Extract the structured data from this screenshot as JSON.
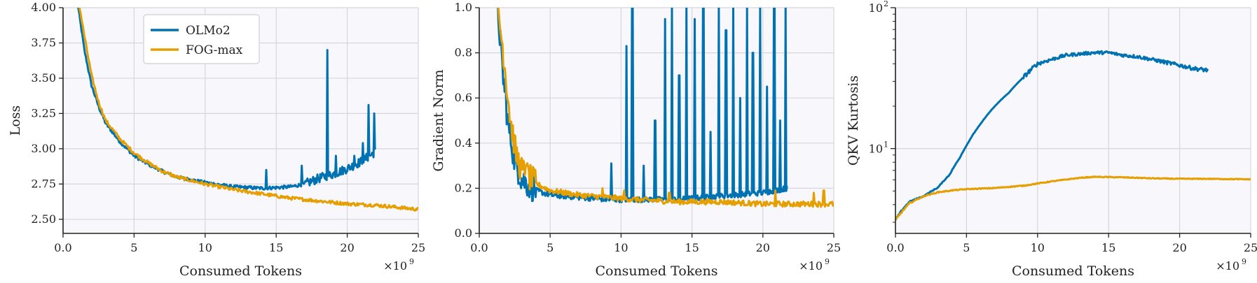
{
  "colors": {
    "olmo2": "#0072b2",
    "fog": "#e69f00",
    "grid": "#d6d6de",
    "plot_bg": "#f7f7fc"
  },
  "chart_data": [
    {
      "type": "line",
      "xlabel": "Consumed Tokens",
      "ylabel": "Loss",
      "x_multiplier": "×10",
      "x_multiplier_exp": "9",
      "xlim": [
        0,
        25
      ],
      "ylim": [
        2.4,
        4.0
      ],
      "x_ticks": [
        0,
        5,
        10,
        15,
        20,
        25
      ],
      "x_tick_labels": [
        "0.0",
        "5",
        "10",
        "15",
        "20",
        "25"
      ],
      "y_ticks": [
        2.5,
        2.75,
        3.0,
        3.25,
        3.5,
        3.75,
        4.0
      ],
      "y_tick_labels": [
        "2.50",
        "2.75",
        "3.00",
        "3.25",
        "3.50",
        "3.75",
        "4.00"
      ],
      "legend": {
        "position": "top-left",
        "entries": [
          "OLMo2",
          "FOG-max"
        ]
      },
      "series": [
        {
          "name": "OLMo2",
          "x_end": 22,
          "points": [
            [
              1.0,
              4.05
            ],
            [
              1.5,
              3.7
            ],
            [
              2,
              3.45
            ],
            [
              2.5,
              3.3
            ],
            [
              3,
              3.18
            ],
            [
              4,
              3.05
            ],
            [
              5,
              2.95
            ],
            [
              6,
              2.89
            ],
            [
              7,
              2.84
            ],
            [
              8,
              2.8
            ],
            [
              10,
              2.76
            ],
            [
              12,
              2.73
            ],
            [
              14,
              2.72
            ],
            [
              16,
              2.73
            ],
            [
              17,
              2.75
            ],
            [
              18,
              2.79
            ],
            [
              19,
              2.82
            ],
            [
              20,
              2.86
            ],
            [
              21,
              2.91
            ],
            [
              22,
              2.98
            ]
          ],
          "spikes": [
            [
              14.3,
              2.85
            ],
            [
              16.8,
              2.88
            ],
            [
              18.6,
              3.7
            ],
            [
              19.2,
              2.95
            ],
            [
              20.5,
              2.95
            ],
            [
              21.1,
              3.04
            ],
            [
              21.5,
              3.31
            ],
            [
              21.9,
              3.25
            ]
          ]
        },
        {
          "name": "FOG-max",
          "x_end": 25,
          "points": [
            [
              1.0,
              4.1
            ],
            [
              1.5,
              3.8
            ],
            [
              2,
              3.52
            ],
            [
              2.5,
              3.33
            ],
            [
              3,
              3.2
            ],
            [
              4,
              3.07
            ],
            [
              5,
              2.97
            ],
            [
              6,
              2.9
            ],
            [
              7,
              2.84
            ],
            [
              8,
              2.8
            ],
            [
              10,
              2.75
            ],
            [
              12,
              2.71
            ],
            [
              14,
              2.68
            ],
            [
              16,
              2.65
            ],
            [
              18,
              2.63
            ],
            [
              20,
              2.61
            ],
            [
              22,
              2.6
            ],
            [
              24,
              2.58
            ],
            [
              25,
              2.57
            ]
          ],
          "spikes": []
        }
      ]
    },
    {
      "type": "line",
      "xlabel": "Consumed Tokens",
      "ylabel": "Gradient Norm",
      "x_multiplier": "×10",
      "x_multiplier_exp": "9",
      "xlim": [
        0,
        25
      ],
      "ylim": [
        0,
        1.0
      ],
      "x_ticks": [
        0,
        5,
        10,
        15,
        20,
        25
      ],
      "x_tick_labels": [
        "0.0",
        "5",
        "10",
        "15",
        "20",
        "25"
      ],
      "y_ticks": [
        0,
        0.2,
        0.4,
        0.6,
        0.8,
        1.0
      ],
      "y_tick_labels": [
        "0.0",
        "0.2",
        "0.4",
        "0.6",
        "0.8",
        "1.0"
      ],
      "series": [
        {
          "name": "OLMo2",
          "x_end": 21.7,
          "points": [
            [
              1.3,
              1.0
            ],
            [
              1.6,
              0.75
            ],
            [
              2,
              0.5
            ],
            [
              2.5,
              0.32
            ],
            [
              3,
              0.24
            ],
            [
              4,
              0.19
            ],
            [
              5,
              0.17
            ],
            [
              7,
              0.16
            ],
            [
              9,
              0.15
            ],
            [
              12,
              0.15
            ],
            [
              14,
              0.15
            ],
            [
              16,
              0.16
            ],
            [
              18,
              0.17
            ],
            [
              20,
              0.18
            ],
            [
              21.7,
              0.2
            ]
          ],
          "spikes": [
            [
              1.5,
              0.9
            ],
            [
              1.9,
              0.62
            ],
            [
              9.3,
              0.31
            ],
            [
              10.4,
              0.83
            ],
            [
              10.8,
              1.0
            ],
            [
              11.6,
              0.3
            ],
            [
              12.4,
              0.5
            ],
            [
              13.1,
              0.95
            ],
            [
              13.6,
              1.0
            ],
            [
              14.1,
              0.7
            ],
            [
              14.6,
              1.0
            ],
            [
              15.2,
              0.95
            ],
            [
              15.8,
              1.0
            ],
            [
              16.3,
              0.45
            ],
            [
              16.9,
              1.0
            ],
            [
              17.4,
              0.9
            ],
            [
              17.9,
              1.0
            ],
            [
              18.4,
              0.6
            ],
            [
              18.9,
              1.0
            ],
            [
              19.3,
              0.8
            ],
            [
              19.8,
              1.0
            ],
            [
              20.3,
              0.65
            ],
            [
              20.8,
              1.0
            ],
            [
              21.2,
              0.5
            ],
            [
              21.6,
              1.0
            ]
          ]
        },
        {
          "name": "FOG-max",
          "x_end": 25,
          "points": [
            [
              1.3,
              1.0
            ],
            [
              1.7,
              0.8
            ],
            [
              2.2,
              0.5
            ],
            [
              2.6,
              0.35
            ],
            [
              3,
              0.28
            ],
            [
              4,
              0.22
            ],
            [
              5,
              0.19
            ],
            [
              7,
              0.17
            ],
            [
              9,
              0.16
            ],
            [
              11,
              0.15
            ],
            [
              14,
              0.14
            ],
            [
              17,
              0.14
            ],
            [
              20,
              0.13
            ],
            [
              23,
              0.13
            ],
            [
              25,
              0.13
            ]
          ],
          "spikes": [
            [
              3.3,
              0.3
            ],
            [
              8.7,
              0.2
            ],
            [
              10.2,
              0.19
            ],
            [
              13.4,
              0.18
            ],
            [
              20.9,
              0.19
            ],
            [
              23.6,
              0.18
            ],
            [
              24.3,
              0.19
            ]
          ]
        }
      ]
    },
    {
      "type": "line",
      "xlabel": "Consumed Tokens",
      "ylabel": "QKV Kurtosis",
      "x_multiplier": "×10",
      "x_multiplier_exp": "9",
      "xlim": [
        0,
        25
      ],
      "y_scale": "log",
      "ylim": [
        2.5,
        100
      ],
      "x_ticks": [
        0,
        5,
        10,
        15,
        20,
        25
      ],
      "x_tick_labels": [
        "0.0",
        "5",
        "10",
        "15",
        "20",
        "25"
      ],
      "y_major_ticks": [
        10,
        100
      ],
      "y_major_tick_labels": [
        {
          "base": "10",
          "exp": "1"
        },
        {
          "base": "10",
          "exp": "2"
        }
      ],
      "series": [
        {
          "name": "OLMo2",
          "x_end": 22,
          "points": [
            [
              0,
              3.1
            ],
            [
              0.5,
              3.7
            ],
            [
              1,
              4.2
            ],
            [
              2,
              4.6
            ],
            [
              3,
              5.3
            ],
            [
              3.8,
              6.5
            ],
            [
              4.5,
              8.5
            ],
            [
              5,
              10.5
            ],
            [
              6,
              15
            ],
            [
              7,
              20
            ],
            [
              8,
              25
            ],
            [
              9,
              32
            ],
            [
              10,
              40
            ],
            [
              11,
              43
            ],
            [
              12,
              46
            ],
            [
              13,
              47
            ],
            [
              14,
              48
            ],
            [
              15,
              48
            ],
            [
              16,
              46
            ],
            [
              17,
              45
            ],
            [
              18,
              43
            ],
            [
              19,
              41
            ],
            [
              20,
              39
            ],
            [
              21,
              37
            ],
            [
              22,
              36
            ]
          ]
        },
        {
          "name": "FOG-max",
          "x_end": 25,
          "points": [
            [
              0,
              3.1
            ],
            [
              0.5,
              3.6
            ],
            [
              1,
              4.1
            ],
            [
              2,
              4.6
            ],
            [
              3,
              4.9
            ],
            [
              4,
              5.05
            ],
            [
              5,
              5.15
            ],
            [
              7,
              5.25
            ],
            [
              9,
              5.45
            ],
            [
              11,
              5.85
            ],
            [
              13,
              6.2
            ],
            [
              14,
              6.3
            ],
            [
              16,
              6.25
            ],
            [
              18,
              6.15
            ],
            [
              20,
              6.1
            ],
            [
              22,
              6.1
            ],
            [
              25,
              6.05
            ]
          ]
        }
      ]
    }
  ]
}
